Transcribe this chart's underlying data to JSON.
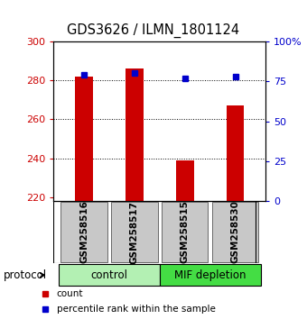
{
  "title": "GDS3626 / ILMN_1801124",
  "samples": [
    "GSM258516",
    "GSM258517",
    "GSM258515",
    "GSM258530"
  ],
  "bar_values": [
    282,
    286,
    239,
    267
  ],
  "bar_bottom": 218,
  "percentile_values": [
    79,
    80,
    77,
    78
  ],
  "bar_color": "#cc0000",
  "percentile_color": "#0000cc",
  "ylim_left": [
    218,
    300
  ],
  "ylim_right": [
    0,
    100
  ],
  "yticks_left": [
    220,
    240,
    260,
    280,
    300
  ],
  "yticks_right": [
    0,
    25,
    50,
    75,
    100
  ],
  "ytick_labels_right": [
    "0",
    "25",
    "50",
    "75",
    "100%"
  ],
  "groups": [
    {
      "label": "control",
      "indices": [
        0,
        1
      ],
      "color": "#b3f0b3"
    },
    {
      "label": "MIF depletion",
      "indices": [
        2,
        3
      ],
      "color": "#44dd44"
    }
  ],
  "protocol_label": "protocol",
  "legend_items": [
    {
      "color": "#cc0000",
      "label": "count"
    },
    {
      "color": "#0000cc",
      "label": "percentile rank within the sample"
    }
  ],
  "background_color": "#ffffff",
  "plot_bg": "#ffffff",
  "sample_box_color": "#c8c8c8",
  "gridline_ticks": [
    240,
    260,
    280
  ]
}
